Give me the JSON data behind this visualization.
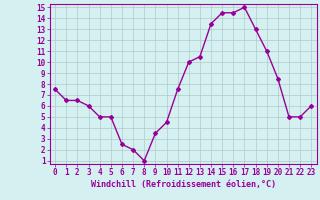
{
  "x": [
    0,
    1,
    2,
    3,
    4,
    5,
    6,
    7,
    8,
    9,
    10,
    11,
    12,
    13,
    14,
    15,
    16,
    17,
    18,
    19,
    20,
    21,
    22,
    23
  ],
  "y": [
    7.5,
    6.5,
    6.5,
    6.0,
    5.0,
    5.0,
    2.5,
    2.0,
    1.0,
    3.5,
    4.5,
    7.5,
    10.0,
    10.5,
    13.5,
    14.5,
    14.5,
    15.0,
    13.0,
    11.0,
    8.5,
    5.0,
    5.0,
    6.0
  ],
  "line_color": "#990099",
  "marker": "D",
  "marker_size": 2,
  "bg_color": "#d5f0f0",
  "grid_color": "#b0c8c8",
  "xlabel": "Windchill (Refroidissement éolien,°C)",
  "xlabel_fontsize": 6.0,
  "tick_fontsize": 5.5,
  "ylim_min": 1,
  "ylim_max": 15,
  "xlim_min": 0,
  "xlim_max": 23,
  "yticks": [
    1,
    2,
    3,
    4,
    5,
    6,
    7,
    8,
    9,
    10,
    11,
    12,
    13,
    14,
    15
  ],
  "xticks": [
    0,
    1,
    2,
    3,
    4,
    5,
    6,
    7,
    8,
    9,
    10,
    11,
    12,
    13,
    14,
    15,
    16,
    17,
    18,
    19,
    20,
    21,
    22,
    23
  ],
  "tick_color": "#990099",
  "label_color": "#990099",
  "spine_color": "#990099",
  "line_width": 1.0
}
